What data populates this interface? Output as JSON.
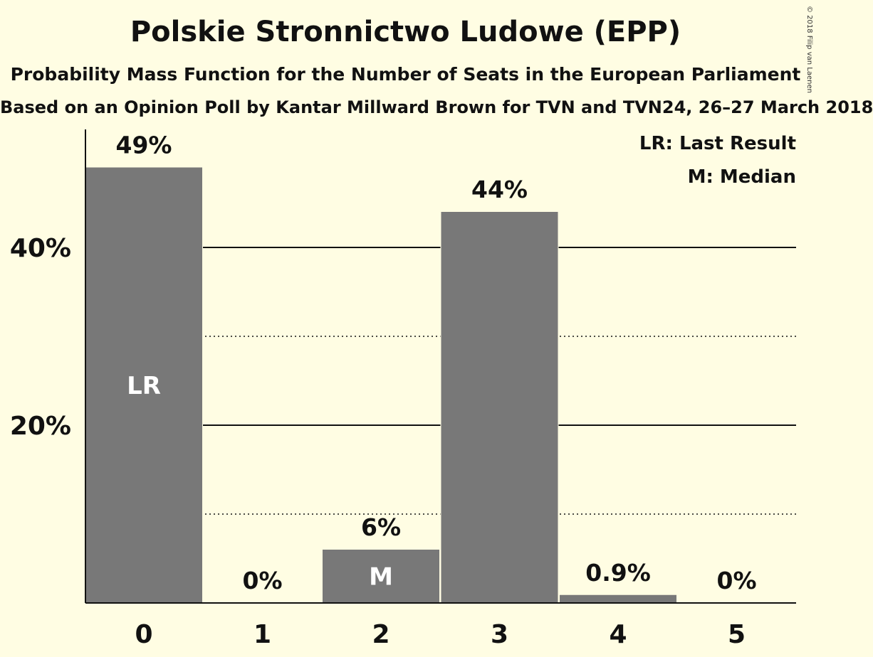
{
  "chart_data": {
    "type": "bar",
    "title": "Polskie Stronnictwo Ludowe (EPP)",
    "subtitle": "Probability Mass Function for the Number of Seats in the European Parliament",
    "subtitle2": "Based on an Opinion Poll by Kantar Millward Brown for TVN and TVN24, 26–27 March 2018",
    "copyright": "© 2018 Filip van Laenen",
    "categories": [
      "0",
      "1",
      "2",
      "3",
      "4",
      "5"
    ],
    "values": [
      49,
      0,
      6,
      44,
      0.9,
      0
    ],
    "value_labels": [
      "49%",
      "0%",
      "6%",
      "44%",
      "0.9%",
      "0%"
    ],
    "bar_marks": [
      "LR",
      "",
      "M",
      "",
      "",
      ""
    ],
    "ylim": [
      0,
      53
    ],
    "yticks": [
      {
        "value": 20,
        "label": "20%"
      },
      {
        "value": 40,
        "label": "40%"
      }
    ],
    "minor_gridlines": [
      10,
      30
    ],
    "legend": [
      "LR: Last Result",
      "M: Median"
    ],
    "legend_position": "top-right",
    "bar_color": "#787878",
    "background_color": "#fffde3"
  }
}
